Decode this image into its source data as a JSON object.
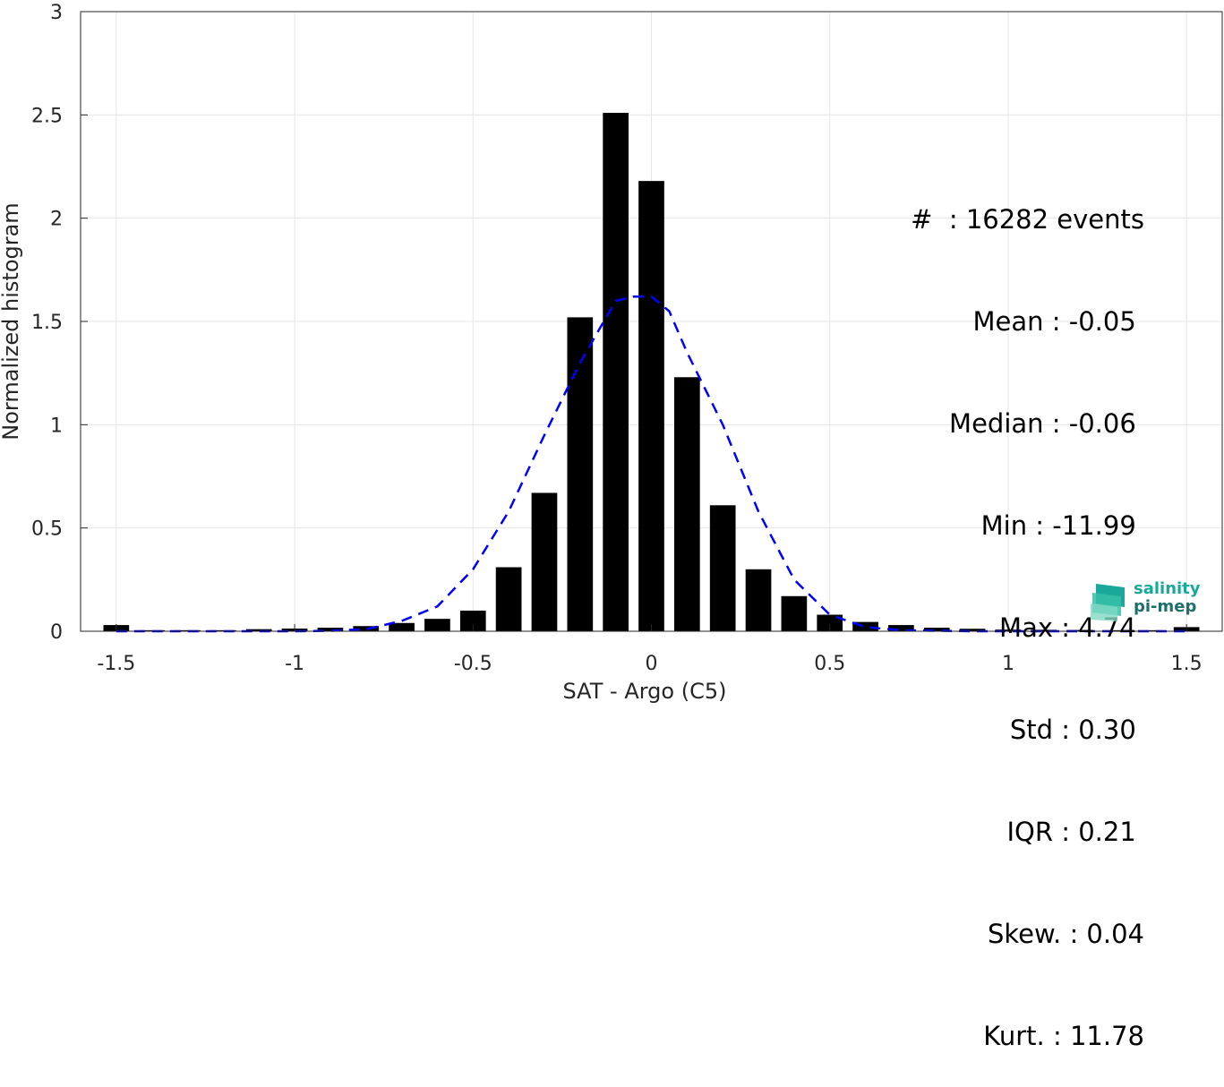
{
  "chart_data": {
    "type": "bar",
    "xlabel": "SAT - Argo (C5)",
    "ylabel": "Normalized histogram",
    "xlim": [
      -1.6,
      1.6
    ],
    "ylim": [
      0,
      3
    ],
    "xticks": [
      "-1.5",
      "-1",
      "-0.5",
      "0",
      "0.5",
      "1",
      "1.5"
    ],
    "xtick_values": [
      -1.5,
      -1,
      -0.5,
      0,
      0.5,
      1,
      1.5
    ],
    "yticks": [
      "0",
      "0.5",
      "1",
      "1.5",
      "2",
      "2.5",
      "3"
    ],
    "ytick_values": [
      0,
      0.5,
      1,
      1.5,
      2,
      2.5,
      3
    ],
    "grid": true,
    "bar_color": "#000000",
    "fit_color": "#0000ff",
    "bars": {
      "x": [
        -1.5,
        -1.4,
        -1.3,
        -1.2,
        -1.1,
        -1.0,
        -0.9,
        -0.8,
        -0.7,
        -0.6,
        -0.5,
        -0.4,
        -0.3,
        -0.2,
        -0.1,
        0.0,
        0.1,
        0.2,
        0.3,
        0.4,
        0.5,
        0.6,
        0.7,
        0.8,
        0.9,
        1.0,
        1.1,
        1.2,
        1.3,
        1.4,
        1.5
      ],
      "values": [
        0.03,
        0.005,
        0.005,
        0.005,
        0.01,
        0.013,
        0.017,
        0.025,
        0.04,
        0.06,
        0.1,
        0.31,
        0.67,
        1.52,
        2.51,
        2.18,
        1.23,
        0.61,
        0.3,
        0.17,
        0.08,
        0.045,
        0.03,
        0.017,
        0.012,
        0.008,
        0.007,
        0.006,
        0.005,
        0.005,
        0.02
      ]
    },
    "fit": {
      "x": [
        -1.5,
        -1.4,
        -1.3,
        -1.2,
        -1.1,
        -1.0,
        -0.9,
        -0.8,
        -0.7,
        -0.6,
        -0.5,
        -0.4,
        -0.3,
        -0.2,
        -0.15,
        -0.1,
        -0.05,
        0.0,
        0.05,
        0.1,
        0.2,
        0.3,
        0.4,
        0.5,
        0.6,
        0.7,
        0.8,
        0.9,
        1.0,
        1.1,
        1.2,
        1.3,
        1.4,
        1.5
      ],
      "values": [
        0,
        0,
        0,
        0,
        0,
        0,
        0.002,
        0.01,
        0.05,
        0.12,
        0.3,
        0.58,
        0.95,
        1.3,
        1.45,
        1.6,
        1.62,
        1.62,
        1.55,
        1.35,
        1.0,
        0.58,
        0.25,
        0.08,
        0.02,
        0.005,
        0.002,
        0,
        0,
        0,
        0,
        0,
        0,
        0
      ]
    }
  },
  "stats": {
    "events": "#  : 16282 events",
    "mean": "Mean : -0.05 ",
    "median": "Median : -0.06 ",
    "min": "Min : -11.99 ",
    "max": "Max : 4.74 ",
    "std": "Std : 0.30 ",
    "iqr": "IQR : 0.21 ",
    "skew": "Skew. : 0.04",
    "kurt": "Kurt. : 11.78"
  },
  "logo": {
    "line1": "salinity",
    "line2": "pi-mep",
    "color1": "#1aa89a",
    "color2": "#1f6f6a"
  }
}
